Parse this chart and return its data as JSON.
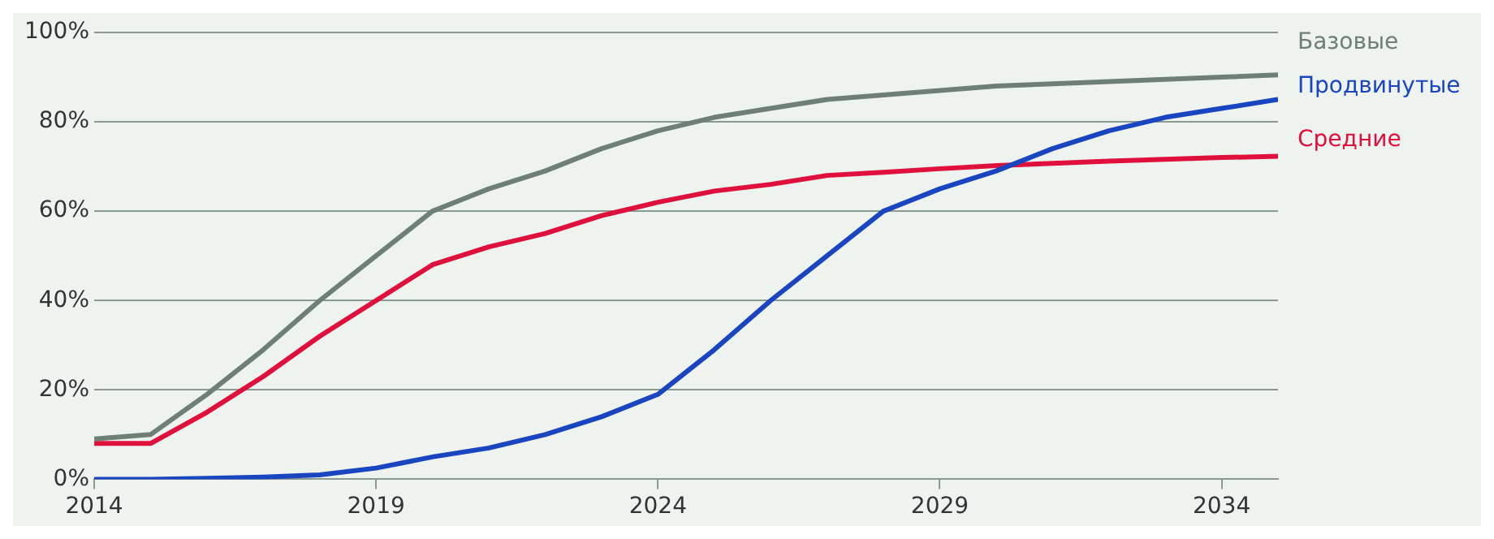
{
  "chart_data": {
    "type": "line",
    "x": [
      2014,
      2015,
      2016,
      2017,
      2018,
      2019,
      2020,
      2021,
      2022,
      2023,
      2024,
      2025,
      2026,
      2027,
      2028,
      2029,
      2030,
      2031,
      2032,
      2033,
      2034,
      2035
    ],
    "series": [
      {
        "name": "Базовые",
        "color": "#6e8073",
        "values": [
          9,
          10,
          19,
          29,
          40,
          50,
          60,
          65,
          69,
          74,
          78,
          81,
          83,
          85,
          86,
          87,
          88,
          88.5,
          89,
          89.5,
          90,
          90.5
        ]
      },
      {
        "name": "Продвинутые",
        "color": "#1a45c0",
        "values": [
          0,
          0,
          0.2,
          0.5,
          1,
          2.5,
          5,
          7,
          10,
          14,
          19,
          29,
          40,
          50,
          60,
          65,
          69,
          74,
          78,
          81,
          83,
          85
        ]
      },
      {
        "name": "Средние",
        "color": "#e0103c",
        "values": [
          8,
          8,
          15,
          23,
          32,
          40,
          48,
          52,
          55,
          59,
          62,
          64.5,
          66,
          68,
          68.7,
          69.5,
          70.2,
          70.7,
          71.2,
          71.6,
          72,
          72.3
        ]
      }
    ],
    "xlim": [
      2014,
      2035
    ],
    "xticks": [
      2014,
      2019,
      2024,
      2029,
      2034
    ],
    "ylim": [
      0,
      100
    ],
    "yticks": [
      {
        "value": 0,
        "label": "0%"
      },
      {
        "value": 20,
        "label": "20%"
      },
      {
        "value": 40,
        "label": "40%"
      },
      {
        "value": 60,
        "label": "60%"
      },
      {
        "value": 80,
        "label": "80%"
      },
      {
        "value": 100,
        "label": "100%"
      }
    ],
    "grid": "y",
    "legend": false,
    "marker": "none",
    "line_style": "solid"
  }
}
